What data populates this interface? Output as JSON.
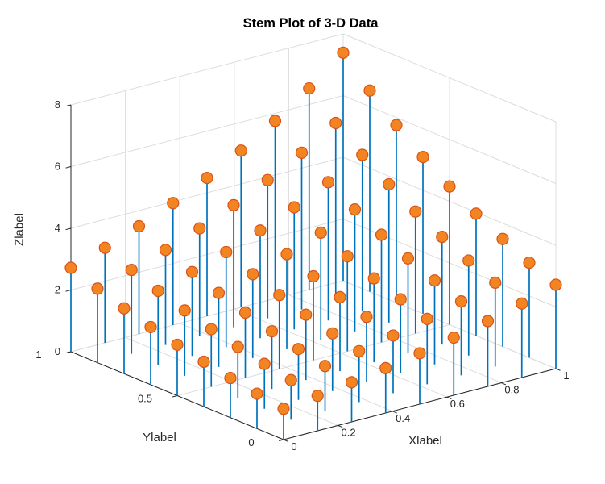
{
  "figure": {
    "background": "#ffffff"
  },
  "chart_data": {
    "type": "stem3",
    "title": "Stem Plot of 3-D Data",
    "xlabel": "Xlabel",
    "ylabel": "Ylabel",
    "zlabel": "Zlabel",
    "x": [
      0,
      0.125,
      0.25,
      0.375,
      0.5,
      0.625,
      0.75,
      0.875,
      1
    ],
    "y": [
      0,
      0.125,
      0.25,
      0.375,
      0.5,
      0.625,
      0.75,
      0.875,
      1
    ],
    "z": [
      [
        1.0,
        1.133,
        1.284,
        1.455,
        1.649,
        1.868,
        2.117,
        2.399,
        2.718
      ],
      [
        1.133,
        1.284,
        1.455,
        1.649,
        1.868,
        2.117,
        2.399,
        2.718,
        3.08
      ],
      [
        1.284,
        1.455,
        1.649,
        1.868,
        2.117,
        2.399,
        2.718,
        3.08,
        3.49
      ],
      [
        1.455,
        1.649,
        1.868,
        2.117,
        2.399,
        2.718,
        3.08,
        3.49,
        3.955
      ],
      [
        1.649,
        1.868,
        2.117,
        2.399,
        2.718,
        3.08,
        3.49,
        3.955,
        4.482
      ],
      [
        1.868,
        2.117,
        2.399,
        2.718,
        3.08,
        3.49,
        3.955,
        4.482,
        5.078
      ],
      [
        2.117,
        2.399,
        2.718,
        3.08,
        3.49,
        3.955,
        4.482,
        5.078,
        5.755
      ],
      [
        2.399,
        2.718,
        3.08,
        3.49,
        3.955,
        4.482,
        5.078,
        5.755,
        6.521
      ],
      [
        2.718,
        3.08,
        3.49,
        3.955,
        4.482,
        5.078,
        5.755,
        6.521,
        7.389
      ]
    ],
    "xlim": [
      0,
      1
    ],
    "ylim": [
      0,
      1
    ],
    "zlim": [
      0,
      8
    ],
    "x_ticks": [
      0,
      0.2,
      0.4,
      0.6,
      0.8,
      1
    ],
    "x_tick_labels": [
      "0",
      "0.2",
      "0.4",
      "0.6",
      "0.8",
      "1"
    ],
    "y_ticks": [
      0,
      0.5,
      1
    ],
    "y_tick_labels": [
      "0",
      "0.5",
      "1"
    ],
    "z_ticks": [
      0,
      2,
      4,
      6,
      8
    ],
    "z_tick_labels": [
      "0",
      "2",
      "4",
      "6",
      "8"
    ],
    "grid": true,
    "view": {
      "azimuth": -37.5,
      "elevation": 30
    },
    "colors": {
      "stem": "#0072BD",
      "marker_face": "#F28522",
      "marker_edge": "#D95319",
      "grid": "#DCDCDC",
      "axis": "#262626",
      "text": "#262626",
      "title": "#000000"
    }
  }
}
